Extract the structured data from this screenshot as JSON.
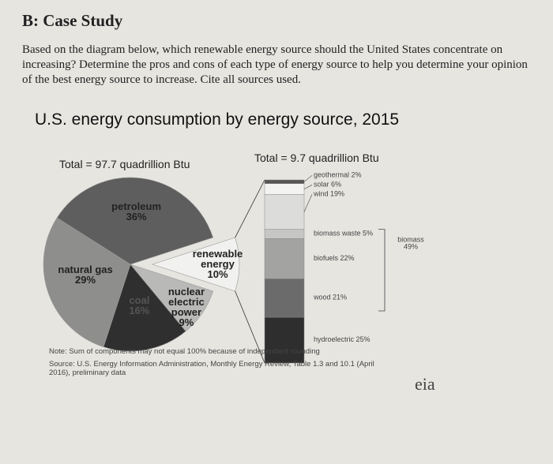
{
  "header": {
    "title": "B: Case Study",
    "paragraph": "Based on the diagram below, which renewable energy source should the United States concentrate on increasing?  Determine the pros and cons of each type of energy source to help you determine your opinion of the best energy source to increase. Cite all sources used."
  },
  "chart_data": [
    {
      "type": "pie",
      "title": "U.S. energy consumption by energy source, 2015",
      "subtitle": "Total = 97.7 quadrillion Btu",
      "categories": [
        "petroleum",
        "renewable energy",
        "nuclear electric power",
        "coal",
        "natural gas"
      ],
      "values": [
        36,
        10,
        9,
        16,
        29
      ],
      "value_labels": [
        "36%",
        "10%",
        "9%",
        "16%",
        "29%"
      ],
      "colors": [
        "#5e5e5e",
        "#f1f1ef",
        "#b9b9b7",
        "#2f2f2f",
        "#8e8e8c"
      ]
    },
    {
      "type": "stacked_bar",
      "subtitle": "Total = 9.7 quadrillion Btu",
      "categories": [
        "hydroelectric",
        "wood",
        "biofuels",
        "biomass waste",
        "wind",
        "solar",
        "geothermal"
      ],
      "values": [
        25,
        21,
        22,
        5,
        19,
        6,
        2
      ],
      "value_labels": [
        "25%",
        "21%",
        "22%",
        "5%",
        "19%",
        "6%",
        "2%"
      ],
      "colors": [
        "#2e2e2e",
        "#6b6b6b",
        "#a3a3a1",
        "#c6c6c4",
        "#dcdcda",
        "#f3f3f1",
        "#555555"
      ],
      "group_label": "biomass",
      "group_value_label": "49%"
    }
  ],
  "note": "Note: Sum of components may not equal 100% because of independent rounding",
  "source": "Source: U.S. Energy Information Administration, Monthly Energy Review, Table 1.3 and 10.1 (April 2016), preliminary data",
  "logo": "eia"
}
